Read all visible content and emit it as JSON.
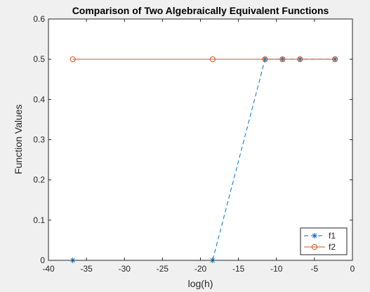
{
  "chart_data": {
    "type": "line",
    "title": "Comparison of Two Algebraically Equivalent Functions",
    "xlabel": "log(h)",
    "ylabel": "Function Values",
    "xlim": [
      -40,
      0
    ],
    "ylim": [
      0,
      0.6
    ],
    "xticks": [
      -40,
      -35,
      -30,
      -25,
      -20,
      -15,
      -10,
      -5,
      0
    ],
    "yticks": [
      0,
      0.1,
      0.2,
      0.3,
      0.4,
      0.5,
      0.6
    ],
    "xtick_labels": [
      "-40",
      "-35",
      "-30",
      "-25",
      "-20",
      "-15",
      "-10",
      "-5",
      "0"
    ],
    "ytick_labels": [
      "0",
      "0.1",
      "0.2",
      "0.3",
      "0.4",
      "0.5",
      "0.6"
    ],
    "grid": false,
    "legend_position": "bottom-right",
    "series": [
      {
        "name": "f1",
        "color": "#0072bd",
        "line_style": "dashed",
        "marker": "asterisk",
        "x": [
          -36.8,
          -18.4,
          -11.5,
          -9.2,
          -6.9,
          -2.3
        ],
        "y": [
          0,
          0,
          0.5,
          0.5,
          0.5,
          0.5
        ]
      },
      {
        "name": "f2",
        "color": "#d95319",
        "line_style": "solid",
        "marker": "circle",
        "x": [
          -36.8,
          -18.4,
          -11.5,
          -9.2,
          -6.9,
          -2.3
        ],
        "y": [
          0.5,
          0.5,
          0.5,
          0.5,
          0.5,
          0.5
        ]
      }
    ]
  }
}
